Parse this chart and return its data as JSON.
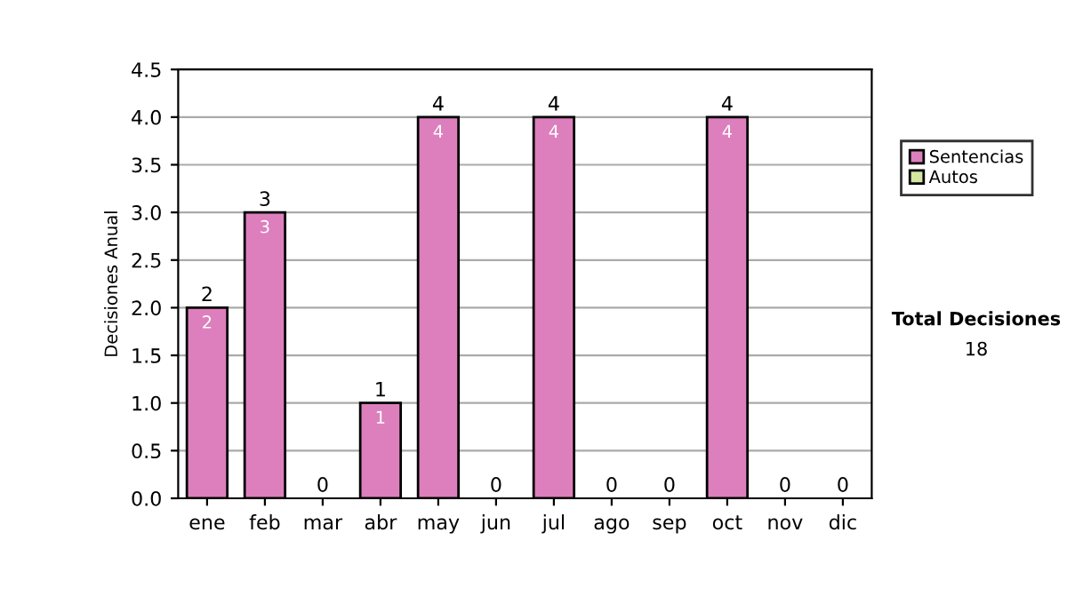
{
  "chart_data": {
    "type": "bar",
    "stacked": true,
    "ylabel": "Decisiones Anual",
    "categories": [
      "ene",
      "feb",
      "mar",
      "abr",
      "may",
      "jun",
      "jul",
      "ago",
      "sep",
      "oct",
      "nov",
      "dic"
    ],
    "series": [
      {
        "name": "Sentencias",
        "color": "#dd7fbd",
        "values": [
          2,
          3,
          0,
          1,
          4,
          0,
          4,
          0,
          0,
          4,
          0,
          0
        ],
        "value_labels": [
          "2",
          "3",
          null,
          "1",
          "4",
          null,
          "4",
          null,
          null,
          "4",
          null,
          null
        ]
      },
      {
        "name": "Autos",
        "color": "#d4e6a0",
        "values": [
          0,
          0,
          0,
          0,
          0,
          0,
          0,
          0,
          0,
          0,
          0,
          0
        ]
      }
    ],
    "totals": [
      "2",
      "3",
      "0",
      "1",
      "4",
      "0",
      "4",
      "0",
      "0",
      "4",
      "0",
      "0"
    ],
    "ylim": [
      0,
      4.5
    ],
    "yticks": [
      {
        "value": 0,
        "label": "0.0"
      },
      {
        "value": 0.5,
        "label": "0.5"
      },
      {
        "value": 1,
        "label": "1.0"
      },
      {
        "value": 1.5,
        "label": "1.5"
      },
      {
        "value": 2,
        "label": "2.0"
      },
      {
        "value": 2.5,
        "label": "2.5"
      },
      {
        "value": 3,
        "label": "3.0"
      },
      {
        "value": 3.5,
        "label": "3.5"
      },
      {
        "value": 4,
        "label": "4.0"
      },
      {
        "value": 4.5,
        "label": "4.5"
      }
    ],
    "grid": "y",
    "legend": "right",
    "annotations": [
      "Total Decisiones",
      "18"
    ]
  }
}
